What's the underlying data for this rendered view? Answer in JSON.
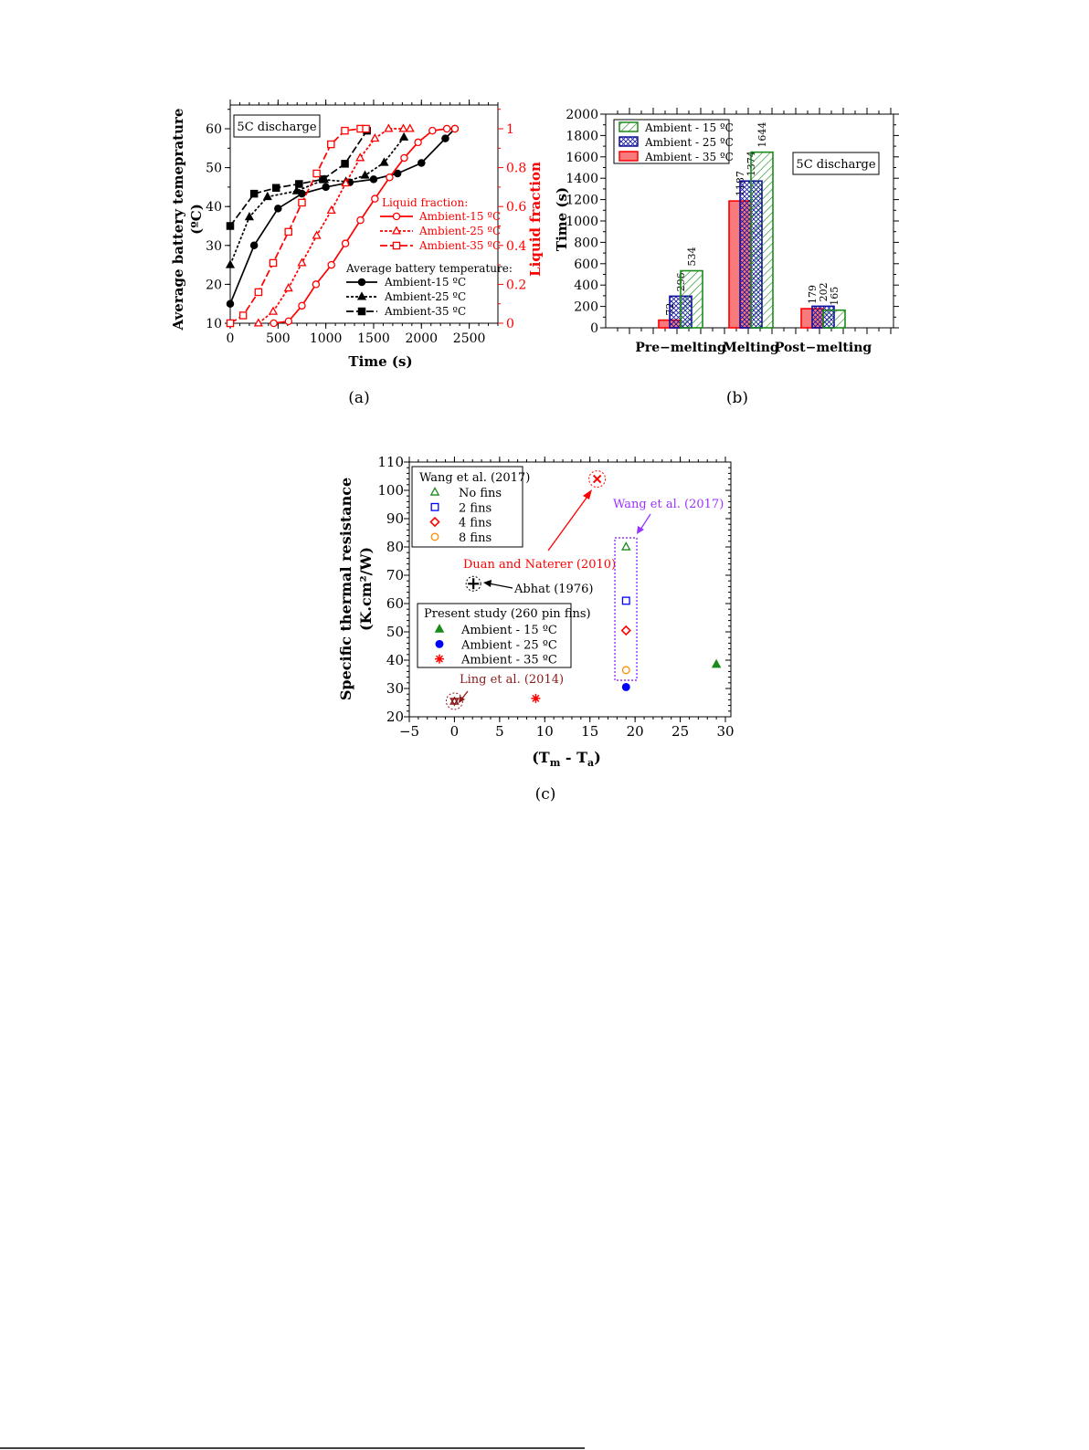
{
  "colors": {
    "black": "#000000",
    "red": "#ff0000",
    "green": "#1a8a1a",
    "blue": "#1010c0",
    "orange": "#ff8c00",
    "purple": "#9933ff",
    "darkred": "#8b1a1a",
    "bar_red": "#f87a7a"
  },
  "chart_data": [
    {
      "type": "line",
      "caption": "(a)",
      "annotation": "5C discharge",
      "xlabel": "Time (s)",
      "ylabel": "Average battery temeprature",
      "ylabel_unit": "(ºC)",
      "y2label": "Liquid fraction",
      "xlim": [
        0,
        2800
      ],
      "xticks": [
        0,
        500,
        1000,
        1500,
        2000,
        2500
      ],
      "ylim": [
        10,
        66
      ],
      "yticks": [
        10,
        20,
        30,
        40,
        50,
        60
      ],
      "y2lim": [
        0,
        1.12
      ],
      "y2ticks": [
        0,
        0.2,
        0.4,
        0.6,
        0.8,
        1
      ],
      "legend_liquid_title": "Liquid fraction:",
      "legend_temp_title": "Average battery temperature:",
      "legend_placement": "right",
      "series": [
        {
          "name": "Ambient-15 ºC",
          "group": "temperature",
          "axis": "left",
          "marker": "circle",
          "filled": true,
          "dash": "",
          "color": "#000000",
          "x": [
            0,
            250,
            500,
            750,
            1000,
            1250,
            1500,
            1750,
            2000,
            2250,
            2350
          ],
          "y": [
            15,
            30,
            39.5,
            43.3,
            45,
            46.2,
            47,
            48.5,
            51.2,
            57.5,
            60
          ]
        },
        {
          "name": "Ambient-25 ºC",
          "group": "temperature",
          "axis": "left",
          "marker": "triangle",
          "filled": true,
          "dash": "3,2",
          "color": "#000000",
          "x": [
            0,
            200,
            390,
            695,
            985,
            1210,
            1410,
            1610,
            1817
          ],
          "y": [
            25,
            37.3,
            42.5,
            44,
            46.9,
            46.4,
            48,
            51.3,
            57.8
          ]
        },
        {
          "name": "Ambient-35 ºC",
          "group": "temperature",
          "axis": "left",
          "marker": "square",
          "filled": true,
          "dash": "8,3",
          "color": "#000000",
          "x": [
            0,
            250,
            480,
            720,
            970,
            1200,
            1430
          ],
          "y": [
            35,
            43.3,
            44.8,
            45.8,
            47,
            51,
            59.5
          ]
        },
        {
          "name": "Ambient-15 ºC",
          "group": "liquid",
          "axis": "right",
          "marker": "circle",
          "filled": false,
          "dash": "",
          "color": "#ff0000",
          "x": [
            455,
            610,
            750,
            897,
            1058,
            1205,
            1362,
            1513,
            1667,
            1820,
            1965,
            2115,
            2266,
            2350
          ],
          "y": [
            0,
            0.01,
            0.09,
            0.2,
            0.3,
            0.41,
            0.53,
            0.64,
            0.75,
            0.85,
            0.93,
            0.99,
            1.0,
            1.0
          ]
        },
        {
          "name": "Ambient-25 ºC",
          "group": "liquid",
          "axis": "right",
          "marker": "triangle",
          "filled": false,
          "dash": "3,2",
          "color": "#ff0000",
          "x": [
            295,
            449,
            609,
            750,
            904,
            1058,
            1208,
            1359,
            1513,
            1657,
            1811,
            1880
          ],
          "y": [
            0,
            0.06,
            0.18,
            0.31,
            0.45,
            0.58,
            0.72,
            0.85,
            0.95,
            1.0,
            1.0,
            1.0
          ]
        },
        {
          "name": "Ambient-35 ºC",
          "group": "liquid",
          "axis": "right",
          "marker": "square",
          "filled": false,
          "dash": "8,3",
          "color": "#ff0000",
          "x": [
            0,
            135,
            295,
            449,
            609,
            750,
            904,
            1054,
            1199,
            1362,
            1420
          ],
          "y": [
            0,
            0.04,
            0.16,
            0.31,
            0.47,
            0.62,
            0.77,
            0.92,
            0.99,
            1.0,
            1.0
          ]
        }
      ]
    },
    {
      "type": "bar",
      "caption": "(b)",
      "annotation": "5C discharge",
      "xlabel": "",
      "ylabel": "Time (s)",
      "categories": [
        "Pre−melting",
        "Melting",
        "Post−melting"
      ],
      "ylim": [
        0,
        2000
      ],
      "yticks": [
        0,
        200,
        400,
        600,
        800,
        1000,
        1200,
        1400,
        1600,
        1800,
        2000
      ],
      "legend_placement": "top-left",
      "series": [
        {
          "name": "Ambient - 35 ºC",
          "fill": "solid",
          "color": "#ff0000",
          "values": [
            72,
            1187,
            179
          ]
        },
        {
          "name": "Ambient - 25 ºC",
          "fill": "crosshatch",
          "color": "#1010a0",
          "values": [
            296,
            1374,
            202
          ]
        },
        {
          "name": "Ambient - 15 ºC",
          "fill": "diagonal",
          "color": "#1a8a1a",
          "values": [
            534,
            1644,
            165
          ]
        }
      ],
      "legend_order": [
        2,
        1,
        0
      ]
    },
    {
      "type": "scatter",
      "caption": "(c)",
      "xlabel": {
        "a": "(T",
        "sub1": "m",
        "b": " - T",
        "sub2": "a",
        "c": ")"
      },
      "ylabel": "Specific thermal resistance",
      "ylabel_unit": "(K.cm²/W)",
      "xlim": [
        -5,
        30
      ],
      "xticks": [
        -5,
        0,
        5,
        10,
        15,
        20,
        25,
        30
      ],
      "ylim": [
        20,
        110
      ],
      "yticks": [
        20,
        30,
        40,
        50,
        60,
        70,
        80,
        90,
        100,
        110
      ],
      "legend1_title": "Wang et al. (2017)",
      "legend2_title": "Present study (260 pin fins)",
      "series": [
        {
          "name": "No fins",
          "legend": 1,
          "marker": "triangle",
          "filled": false,
          "color": "#1a8a1a",
          "x": [
            19
          ],
          "y": [
            80
          ]
        },
        {
          "name": "2 fins",
          "legend": 1,
          "marker": "square",
          "filled": false,
          "color": "#0000ff",
          "x": [
            19
          ],
          "y": [
            61
          ]
        },
        {
          "name": "4 fins",
          "legend": 1,
          "marker": "diamond",
          "filled": false,
          "color": "#ff0000",
          "x": [
            19
          ],
          "y": [
            50.5
          ]
        },
        {
          "name": "8 fins",
          "legend": 1,
          "marker": "circle",
          "filled": false,
          "color": "#ff8c00",
          "x": [
            19
          ],
          "y": [
            36.5
          ]
        },
        {
          "name": "Ambient - 15 ºC",
          "legend": 2,
          "marker": "triangle",
          "filled": true,
          "color": "#1a8a1a",
          "x": [
            29
          ],
          "y": [
            38.5
          ]
        },
        {
          "name": "Ambient - 25 ºC",
          "legend": 2,
          "marker": "circle",
          "filled": true,
          "color": "#0000ff",
          "x": [
            19
          ],
          "y": [
            30.5
          ]
        },
        {
          "name": "Ambient - 35 ºC",
          "legend": 2,
          "marker": "asterisk",
          "filled": true,
          "color": "#ff0000",
          "x": [
            9
          ],
          "y": [
            26.5
          ]
        }
      ],
      "annotations": [
        {
          "text": "Duan and Naterer (2010)",
          "color": "#ff0000",
          "marker": "x",
          "x": 15.8,
          "y": 104
        },
        {
          "text": "Abhat (1976)",
          "color": "#000000",
          "marker": "plus",
          "x": 2.1,
          "y": 67
        },
        {
          "text": "Ling et al. (2014)",
          "color": "#8b1a1a",
          "marker": "star",
          "x": 0,
          "y": 25.5
        },
        {
          "text": "Wang et al. (2017)",
          "color": "#9933ff",
          "marker": "box",
          "x": 19,
          "y": 58
        }
      ]
    }
  ]
}
